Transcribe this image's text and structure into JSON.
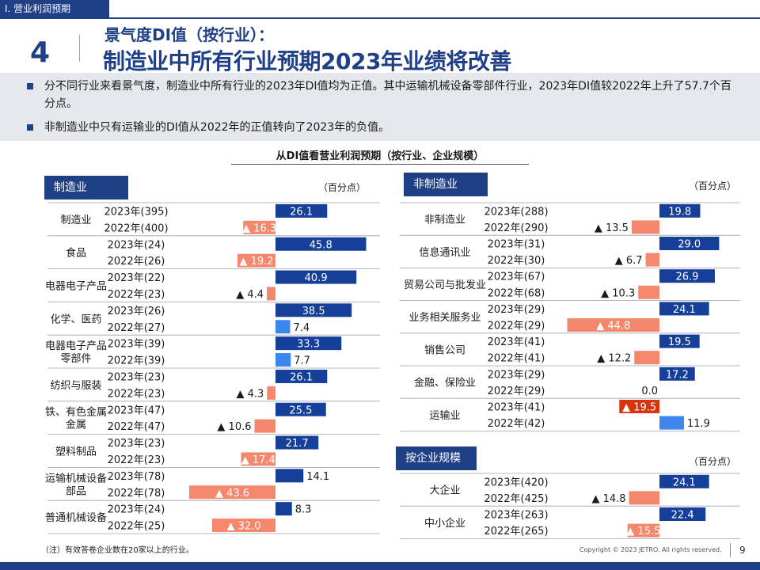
{
  "header": {
    "section": "Ⅰ. 营业利润预期",
    "page_badge": "4",
    "subtitle": "景气度DI值（按行业）：",
    "title": "制造业中所有行业预期2023年业绩将改善"
  },
  "summary": {
    "bullets": [
      "分不同行业来看景气度，制造业中所有行业的2023年DI值均为正值。其中运输机械设备零部件行业，2023年DI值较2022年上升了57.7个百分点。",
      "非制造业中只有运输业的DI值从2022年的正值转向了2023年的负值。"
    ]
  },
  "chart_title": "从DI值看营业利润预期（按行业、企业规模）",
  "colors": {
    "pos2023": "#163f9a",
    "pos2022": "#3d86f0",
    "neg2022": "#f4876c",
    "neg2023": "#d8330c",
    "header": "#1f3f86"
  },
  "chart_data": [
    {
      "type": "bar",
      "title": "制造业",
      "unit": "（百分点）",
      "groups": [
        {
          "name": "制造业",
          "rows": [
            {
              "label": "2023年(395)",
              "value": 26.1,
              "text": "26.1"
            },
            {
              "label": "2022年(400)",
              "value": -16.3,
              "text": "▲ 16.3"
            }
          ]
        },
        {
          "name": "食品",
          "rows": [
            {
              "label": "2023年(24)",
              "value": 45.8,
              "text": "45.8"
            },
            {
              "label": "2022年(26)",
              "value": -19.2,
              "text": "▲ 19.2"
            }
          ]
        },
        {
          "name": "电器电子产品",
          "rows": [
            {
              "label": "2023年(22)",
              "value": 40.9,
              "text": "40.9"
            },
            {
              "label": "2022年(23)",
              "value": -4.4,
              "text": "▲ 4.4"
            }
          ]
        },
        {
          "name": "化学、医药",
          "rows": [
            {
              "label": "2023年(26)",
              "value": 38.5,
              "text": "38.5"
            },
            {
              "label": "2022年(27)",
              "value": 7.4,
              "text": "7.4"
            }
          ]
        },
        {
          "name": "电器电子产品\n零部件",
          "rows": [
            {
              "label": "2023年(39)",
              "value": 33.3,
              "text": "33.3"
            },
            {
              "label": "2022年(39)",
              "value": 7.7,
              "text": "7.7"
            }
          ]
        },
        {
          "name": "纺织与服装",
          "rows": [
            {
              "label": "2023年(23)",
              "value": 26.1,
              "text": "26.1"
            },
            {
              "label": "2022年(23)",
              "value": -4.3,
              "text": "▲ 4.3"
            }
          ]
        },
        {
          "name": "铁、有色金属\n金属",
          "rows": [
            {
              "label": "2023年(47)",
              "value": 25.5,
              "text": "25.5"
            },
            {
              "label": "2022年(47)",
              "value": -10.6,
              "text": "▲ 10.6"
            }
          ]
        },
        {
          "name": "塑料制品",
          "rows": [
            {
              "label": "2023年(23)",
              "value": 21.7,
              "text": "21.7"
            },
            {
              "label": "2022年(23)",
              "value": -17.4,
              "text": "▲ 17.4"
            }
          ]
        },
        {
          "name": "运输机械设备\n部品",
          "rows": [
            {
              "label": "2023年(78)",
              "value": 14.1,
              "text": "14.1"
            },
            {
              "label": "2022年(78)",
              "value": -43.6,
              "text": "▲ 43.6"
            }
          ]
        },
        {
          "name": "普通机械设备",
          "rows": [
            {
              "label": "2023年(24)",
              "value": 8.3,
              "text": "8.3"
            },
            {
              "label": "2022年(25)",
              "value": -32.0,
              "text": "▲ 32.0"
            }
          ]
        }
      ]
    },
    {
      "type": "bar",
      "title": "非制造业",
      "unit": "（百分点）",
      "groups": [
        {
          "name": "非制造业",
          "rows": [
            {
              "label": "2023年(288)",
              "value": 19.8,
              "text": "19.8"
            },
            {
              "label": "2022年(290)",
              "value": -13.5,
              "text": "▲ 13.5"
            }
          ]
        },
        {
          "name": "信息通讯业",
          "rows": [
            {
              "label": "2023年(31)",
              "value": 29.0,
              "text": "29.0"
            },
            {
              "label": "2022年(30)",
              "value": -6.7,
              "text": "▲ 6.7"
            }
          ]
        },
        {
          "name": "贸易公司与批发业",
          "rows": [
            {
              "label": "2023年(67)",
              "value": 26.9,
              "text": "26.9"
            },
            {
              "label": "2022年(68)",
              "value": -10.3,
              "text": "▲ 10.3"
            }
          ]
        },
        {
          "name": "业务相关服务业",
          "rows": [
            {
              "label": "2023年(29)",
              "value": 24.1,
              "text": "24.1"
            },
            {
              "label": "2022年(29)",
              "value": -44.8,
              "text": "▲ 44.8"
            }
          ]
        },
        {
          "name": "销售公司",
          "rows": [
            {
              "label": "2023年(41)",
              "value": 19.5,
              "text": "19.5"
            },
            {
              "label": "2022年(41)",
              "value": -12.2,
              "text": "▲ 12.2"
            }
          ]
        },
        {
          "name": "金融、保险业",
          "rows": [
            {
              "label": "2023年(29)",
              "value": 17.2,
              "text": "17.2"
            },
            {
              "label": "2022年(29)",
              "value": 0.0,
              "text": "0.0"
            }
          ]
        },
        {
          "name": "运输业",
          "rows": [
            {
              "label": "2023年(41)",
              "value": -19.5,
              "text": "▲ 19.5"
            },
            {
              "label": "2022年(42)",
              "value": 11.9,
              "text": "11.9"
            }
          ]
        }
      ]
    },
    {
      "type": "bar",
      "title": "按企业规模",
      "unit": "（百分点）",
      "groups": [
        {
          "name": "大企业",
          "rows": [
            {
              "label": "2023年(420)",
              "value": 24.1,
              "text": "24.1"
            },
            {
              "label": "2022年(425)",
              "value": -14.8,
              "text": "▲ 14.8"
            }
          ]
        },
        {
          "name": "中小企业",
          "rows": [
            {
              "label": "2023年(263)",
              "value": 22.4,
              "text": "22.4"
            },
            {
              "label": "2022年(265)",
              "value": -15.5,
              "text": "▲ 15.5"
            }
          ]
        }
      ]
    }
  ],
  "footer": {
    "note": "（注）有效答卷企业数在20家以上的行业。",
    "copyright": "Copyright © 2023 JETRO. All rights reserved.",
    "page": "9"
  }
}
